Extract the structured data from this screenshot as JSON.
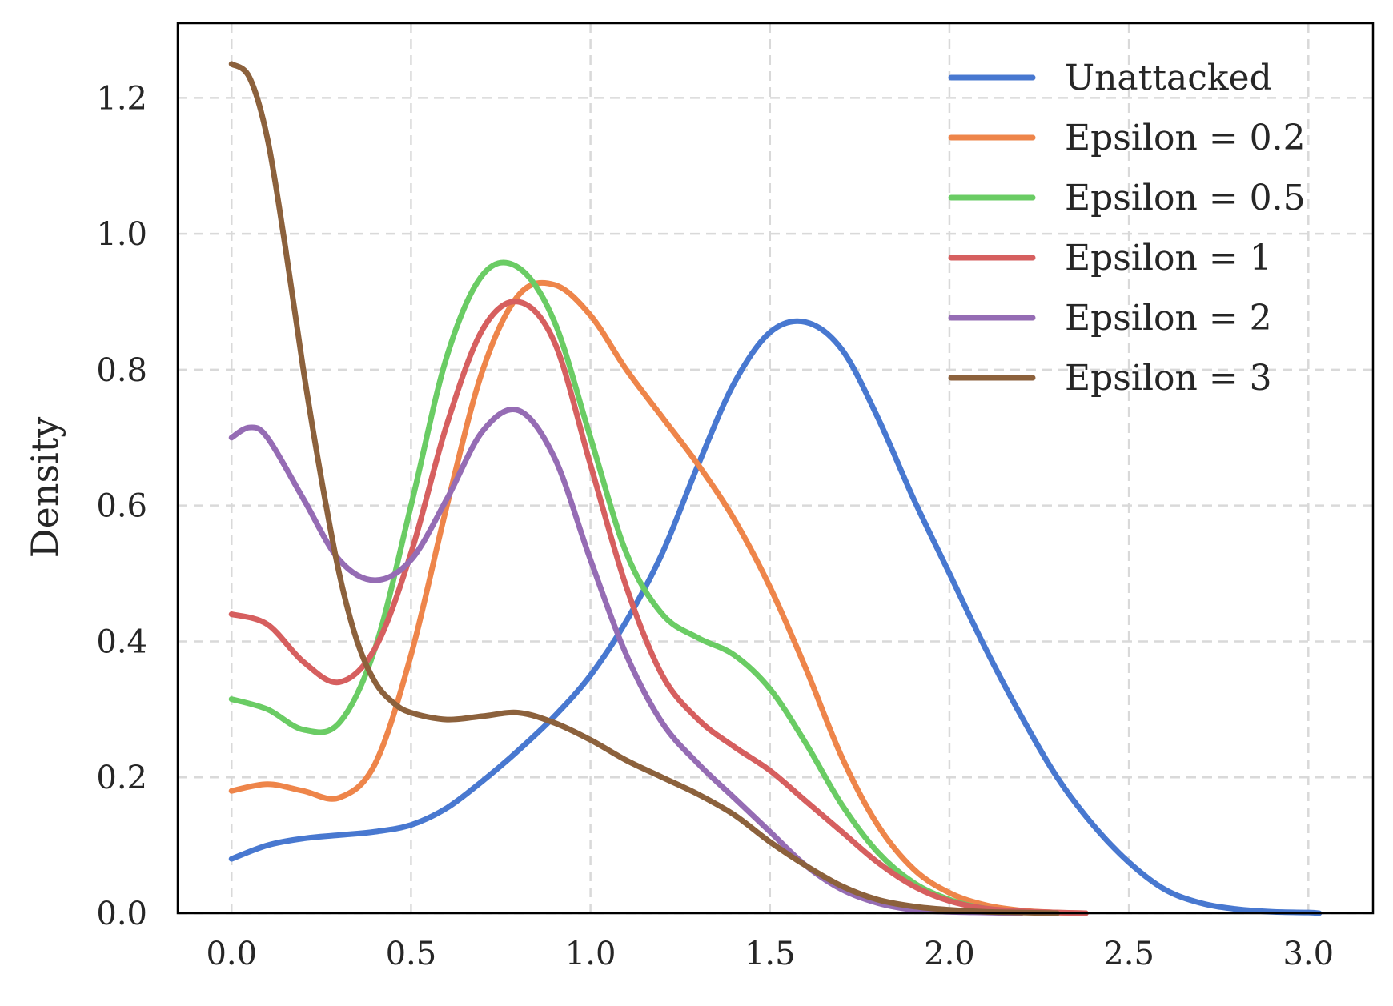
{
  "chart_data": {
    "type": "line",
    "title": "",
    "xlabel": "",
    "ylabel": "Density",
    "xlim": [
      -0.15,
      3.18
    ],
    "ylim": [
      0,
      1.31
    ],
    "xticks": [
      0.0,
      0.5,
      1.0,
      1.5,
      2.0,
      2.5,
      3.0
    ],
    "xtick_labels": [
      "0.0",
      "0.5",
      "1.0",
      "1.5",
      "2.0",
      "2.5",
      "3.0"
    ],
    "yticks": [
      0.0,
      0.2,
      0.4,
      0.6,
      0.8,
      1.0,
      1.2
    ],
    "ytick_labels": [
      "0.0",
      "0.2",
      "0.4",
      "0.6",
      "0.8",
      "1.0",
      "1.2"
    ],
    "grid": true,
    "legend_position": "top-right",
    "series": [
      {
        "name": "Unattacked",
        "color": "#4878d0",
        "x": [
          0.0,
          0.1,
          0.2,
          0.3,
          0.4,
          0.5,
          0.6,
          0.7,
          0.8,
          0.9,
          1.0,
          1.1,
          1.2,
          1.3,
          1.4,
          1.5,
          1.6,
          1.7,
          1.8,
          1.9,
          2.0,
          2.1,
          2.2,
          2.3,
          2.4,
          2.5,
          2.6,
          2.7,
          2.8,
          2.9,
          3.0,
          3.03
        ],
        "y": [
          0.08,
          0.1,
          0.11,
          0.115,
          0.12,
          0.13,
          0.155,
          0.195,
          0.24,
          0.29,
          0.35,
          0.43,
          0.53,
          0.66,
          0.78,
          0.855,
          0.87,
          0.83,
          0.73,
          0.61,
          0.5,
          0.39,
          0.29,
          0.2,
          0.13,
          0.075,
          0.035,
          0.015,
          0.006,
          0.002,
          0.001,
          0.0
        ]
      },
      {
        "name": "Epsilon = 0.2",
        "color": "#ee854a",
        "x": [
          0.0,
          0.1,
          0.2,
          0.3,
          0.4,
          0.5,
          0.6,
          0.7,
          0.8,
          0.9,
          1.0,
          1.1,
          1.2,
          1.3,
          1.4,
          1.5,
          1.6,
          1.7,
          1.8,
          1.9,
          2.0,
          2.1,
          2.2,
          2.3,
          2.38
        ],
        "y": [
          0.18,
          0.19,
          0.18,
          0.17,
          0.22,
          0.38,
          0.6,
          0.8,
          0.91,
          0.925,
          0.88,
          0.8,
          0.73,
          0.66,
          0.58,
          0.48,
          0.36,
          0.23,
          0.13,
          0.065,
          0.03,
          0.012,
          0.004,
          0.001,
          0.0
        ]
      },
      {
        "name": "Epsilon = 0.5",
        "color": "#6acc64",
        "x": [
          0.0,
          0.1,
          0.2,
          0.3,
          0.4,
          0.5,
          0.6,
          0.7,
          0.8,
          0.9,
          1.0,
          1.1,
          1.2,
          1.3,
          1.4,
          1.5,
          1.6,
          1.7,
          1.8,
          1.9,
          2.0,
          2.1,
          2.2,
          2.3
        ],
        "y": [
          0.315,
          0.3,
          0.27,
          0.28,
          0.39,
          0.6,
          0.82,
          0.94,
          0.95,
          0.87,
          0.7,
          0.53,
          0.44,
          0.405,
          0.38,
          0.33,
          0.25,
          0.16,
          0.09,
          0.045,
          0.02,
          0.007,
          0.002,
          0.0
        ]
      },
      {
        "name": "Epsilon = 1",
        "color": "#d65f5f",
        "x": [
          0.0,
          0.1,
          0.2,
          0.3,
          0.4,
          0.5,
          0.6,
          0.7,
          0.8,
          0.9,
          1.0,
          1.1,
          1.2,
          1.3,
          1.4,
          1.5,
          1.6,
          1.7,
          1.8,
          1.9,
          2.0,
          2.1,
          2.2,
          2.3,
          2.38
        ],
        "y": [
          0.44,
          0.425,
          0.37,
          0.34,
          0.39,
          0.53,
          0.72,
          0.86,
          0.9,
          0.84,
          0.66,
          0.48,
          0.35,
          0.285,
          0.245,
          0.21,
          0.165,
          0.12,
          0.075,
          0.04,
          0.018,
          0.007,
          0.003,
          0.001,
          0.0
        ]
      },
      {
        "name": "Epsilon = 2",
        "color": "#956cb4",
        "x": [
          0.0,
          0.05,
          0.1,
          0.2,
          0.3,
          0.4,
          0.5,
          0.6,
          0.7,
          0.8,
          0.9,
          1.0,
          1.1,
          1.2,
          1.3,
          1.4,
          1.5,
          1.6,
          1.7,
          1.8,
          1.9,
          2.0,
          2.1,
          2.2
        ],
        "y": [
          0.7,
          0.715,
          0.7,
          0.61,
          0.52,
          0.49,
          0.52,
          0.61,
          0.71,
          0.74,
          0.67,
          0.52,
          0.38,
          0.28,
          0.22,
          0.17,
          0.12,
          0.07,
          0.035,
          0.015,
          0.005,
          0.002,
          0.001,
          0.0
        ]
      },
      {
        "name": "Epsilon = 3",
        "color": "#8c613c",
        "x": [
          0.0,
          0.05,
          0.1,
          0.15,
          0.2,
          0.25,
          0.3,
          0.35,
          0.4,
          0.45,
          0.5,
          0.6,
          0.7,
          0.8,
          0.9,
          1.0,
          1.1,
          1.2,
          1.3,
          1.4,
          1.5,
          1.6,
          1.7,
          1.8,
          1.9,
          2.0,
          2.1,
          2.2,
          2.3
        ],
        "y": [
          1.25,
          1.23,
          1.14,
          0.98,
          0.8,
          0.64,
          0.5,
          0.4,
          0.34,
          0.31,
          0.295,
          0.285,
          0.29,
          0.295,
          0.28,
          0.255,
          0.225,
          0.2,
          0.175,
          0.145,
          0.105,
          0.07,
          0.04,
          0.02,
          0.01,
          0.005,
          0.002,
          0.001,
          0.0
        ]
      }
    ]
  }
}
